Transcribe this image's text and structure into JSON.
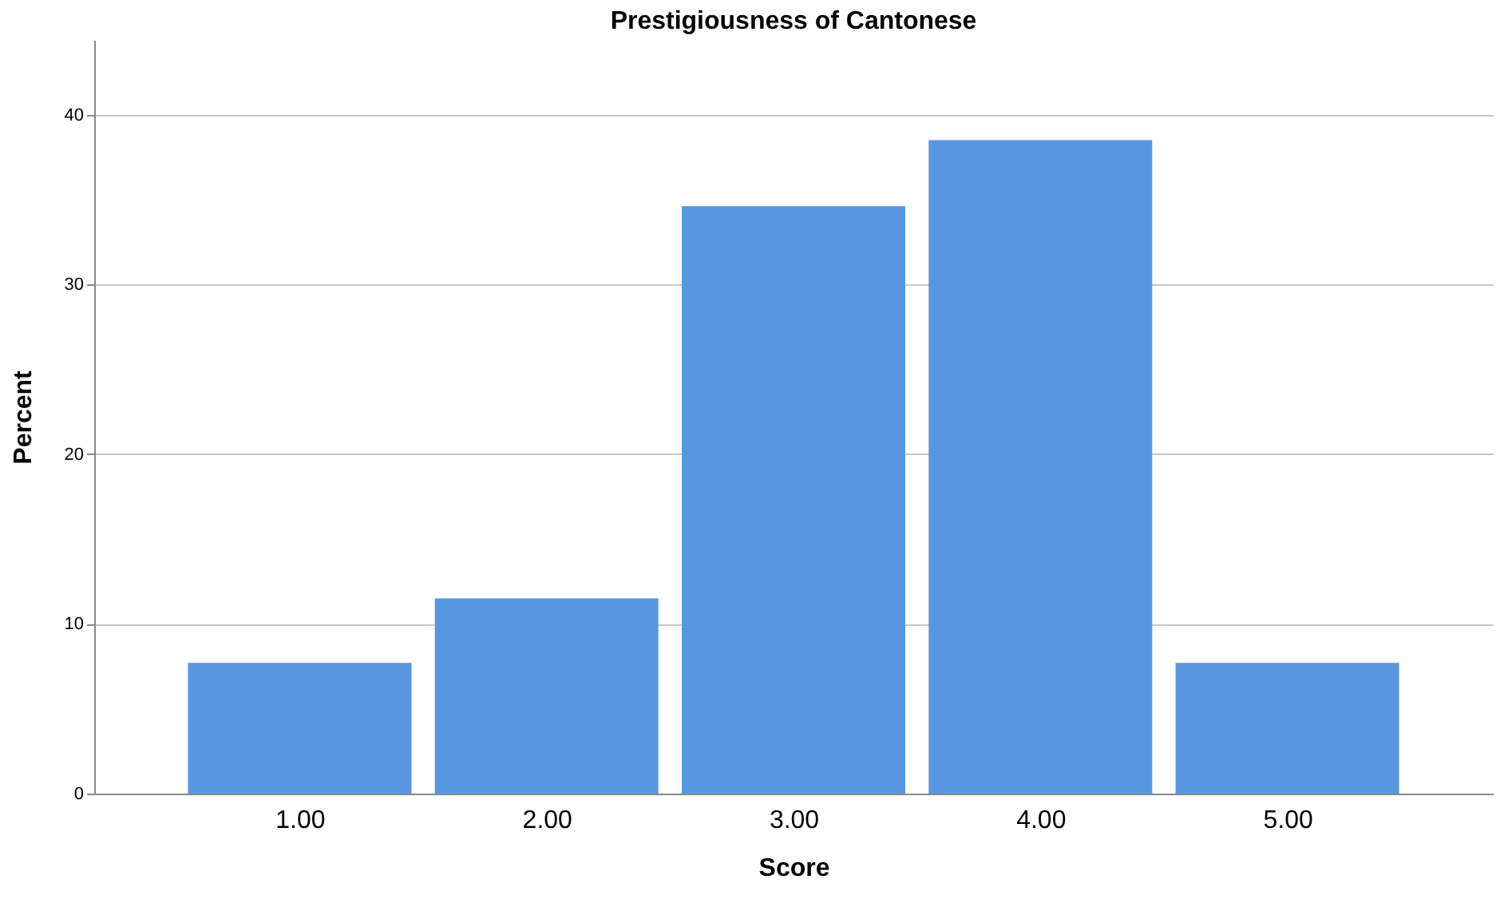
{
  "chart_data": {
    "type": "bar",
    "title": "Prestigiousness of Cantonese",
    "xlabel": "Score",
    "ylabel": "Percent",
    "categories": [
      "1.00",
      "2.00",
      "3.00",
      "4.00",
      "5.00"
    ],
    "values": [
      7.7,
      11.5,
      34.6,
      38.5,
      7.7
    ],
    "color": "#5897e0",
    "ylim": [
      0,
      44.4
    ],
    "yticks": [
      0,
      10,
      20,
      30,
      40
    ],
    "grid": "y"
  }
}
